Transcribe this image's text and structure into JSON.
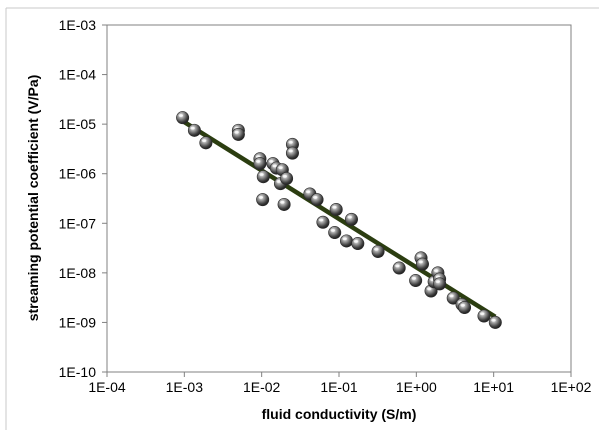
{
  "chart_data": {
    "type": "scatter",
    "title": "",
    "xlabel": "fluid conductivity (S/m)",
    "ylabel": "streaming potential coefficient (V/Pa)",
    "xscale": "log",
    "yscale": "log",
    "xlim": [
      0.0001,
      100
    ],
    "ylim": [
      1e-10,
      0.001
    ],
    "x_tick_labels": [
      "1E-04",
      "1E-03",
      "1E-02",
      "1E-01",
      "1E+00",
      "1E+01",
      "1E+02"
    ],
    "y_tick_labels": [
      "1E-10",
      "1E-09",
      "1E-08",
      "1E-07",
      "1E-06",
      "1E-05",
      "1E-04",
      "1E-03"
    ],
    "grid": false,
    "legend": "none",
    "point_color": "#555555",
    "line_color": "#2b3d10",
    "series": [
      {
        "points": [
          [
            0.00095,
            1.35e-05
          ],
          [
            0.00135,
            7.5e-06
          ],
          [
            0.0019,
            4.2e-06
          ],
          [
            0.005,
            7.5e-06
          ],
          [
            0.005,
            6.2e-06
          ],
          [
            0.0095,
            2e-06
          ],
          [
            0.0095,
            1.6e-06
          ],
          [
            0.0105,
            8.7e-07
          ],
          [
            0.0103,
            3e-07
          ],
          [
            0.014,
            1.6e-06
          ],
          [
            0.0155,
            1.3e-06
          ],
          [
            0.0175,
            6.3e-07
          ],
          [
            0.0185,
            1.2e-06
          ],
          [
            0.0195,
            2.4e-07
          ],
          [
            0.021,
            8e-07
          ],
          [
            0.025,
            3.9e-06
          ],
          [
            0.025,
            2.6e-06
          ],
          [
            0.042,
            3.9e-07
          ],
          [
            0.052,
            3e-07
          ],
          [
            0.062,
            1.05e-07
          ],
          [
            0.088,
            6.5e-08
          ],
          [
            0.092,
            1.9e-07
          ],
          [
            0.125,
            4.4e-08
          ],
          [
            0.145,
            1.2e-07
          ],
          [
            0.175,
            3.9e-08
          ],
          [
            0.32,
            2.7e-08
          ],
          [
            0.6,
            1.25e-08
          ],
          [
            0.98,
            7e-09
          ],
          [
            1.15,
            2e-08
          ],
          [
            1.2,
            1.5e-08
          ],
          [
            1.55,
            4.3e-09
          ],
          [
            1.7,
            6.6e-09
          ],
          [
            1.9,
            1e-08
          ],
          [
            2.0,
            7.5e-09
          ],
          [
            2.0,
            6e-09
          ],
          [
            3.0,
            3.1e-09
          ],
          [
            3.9,
            2.3e-09
          ],
          [
            4.2,
            2e-09
          ],
          [
            7.5,
            1.35e-09
          ],
          [
            10.5,
            1e-09
          ]
        ]
      }
    ],
    "trendline": {
      "type": "power",
      "from": [
        0.001,
        1.1e-05
      ],
      "to": [
        10.5,
        1.3e-09
      ]
    }
  }
}
